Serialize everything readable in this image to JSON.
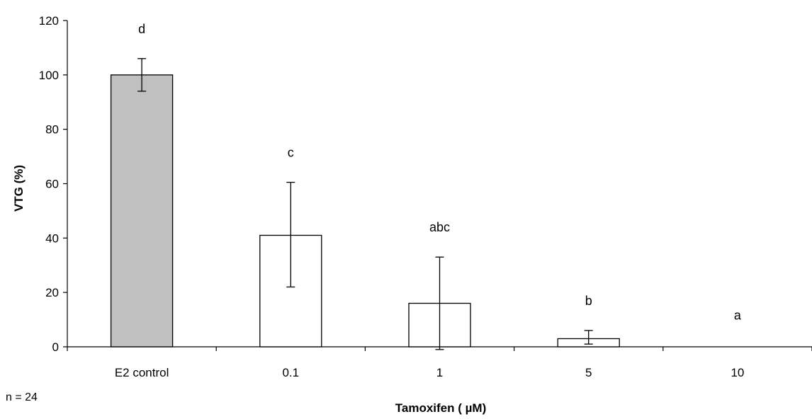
{
  "chart_data": {
    "type": "bar",
    "categories": [
      "E2 control",
      "0.1",
      "1",
      "5",
      "10"
    ],
    "values": [
      100,
      41,
      16,
      3,
      0
    ],
    "error_bars": [
      {
        "low": 94,
        "high": 106
      },
      {
        "low": 22,
        "high": 60.5
      },
      {
        "low": -1,
        "high": 33
      },
      {
        "low": 1,
        "high": 6
      },
      null
    ],
    "significance_letters": [
      "d",
      "c",
      "abc",
      "b",
      "a"
    ],
    "bar_colors": [
      "#c0c0c0",
      "#ffffff",
      "#ffffff",
      "#ffffff",
      "#ffffff"
    ],
    "ylabel": "VTG (%)",
    "xlabel": "Tamoxifen ( µM)",
    "ylim": [
      0,
      120
    ],
    "yticks": [
      0,
      20,
      40,
      60,
      80,
      100,
      120
    ],
    "annotation": "n = 24",
    "grid": false,
    "legend": "none"
  }
}
